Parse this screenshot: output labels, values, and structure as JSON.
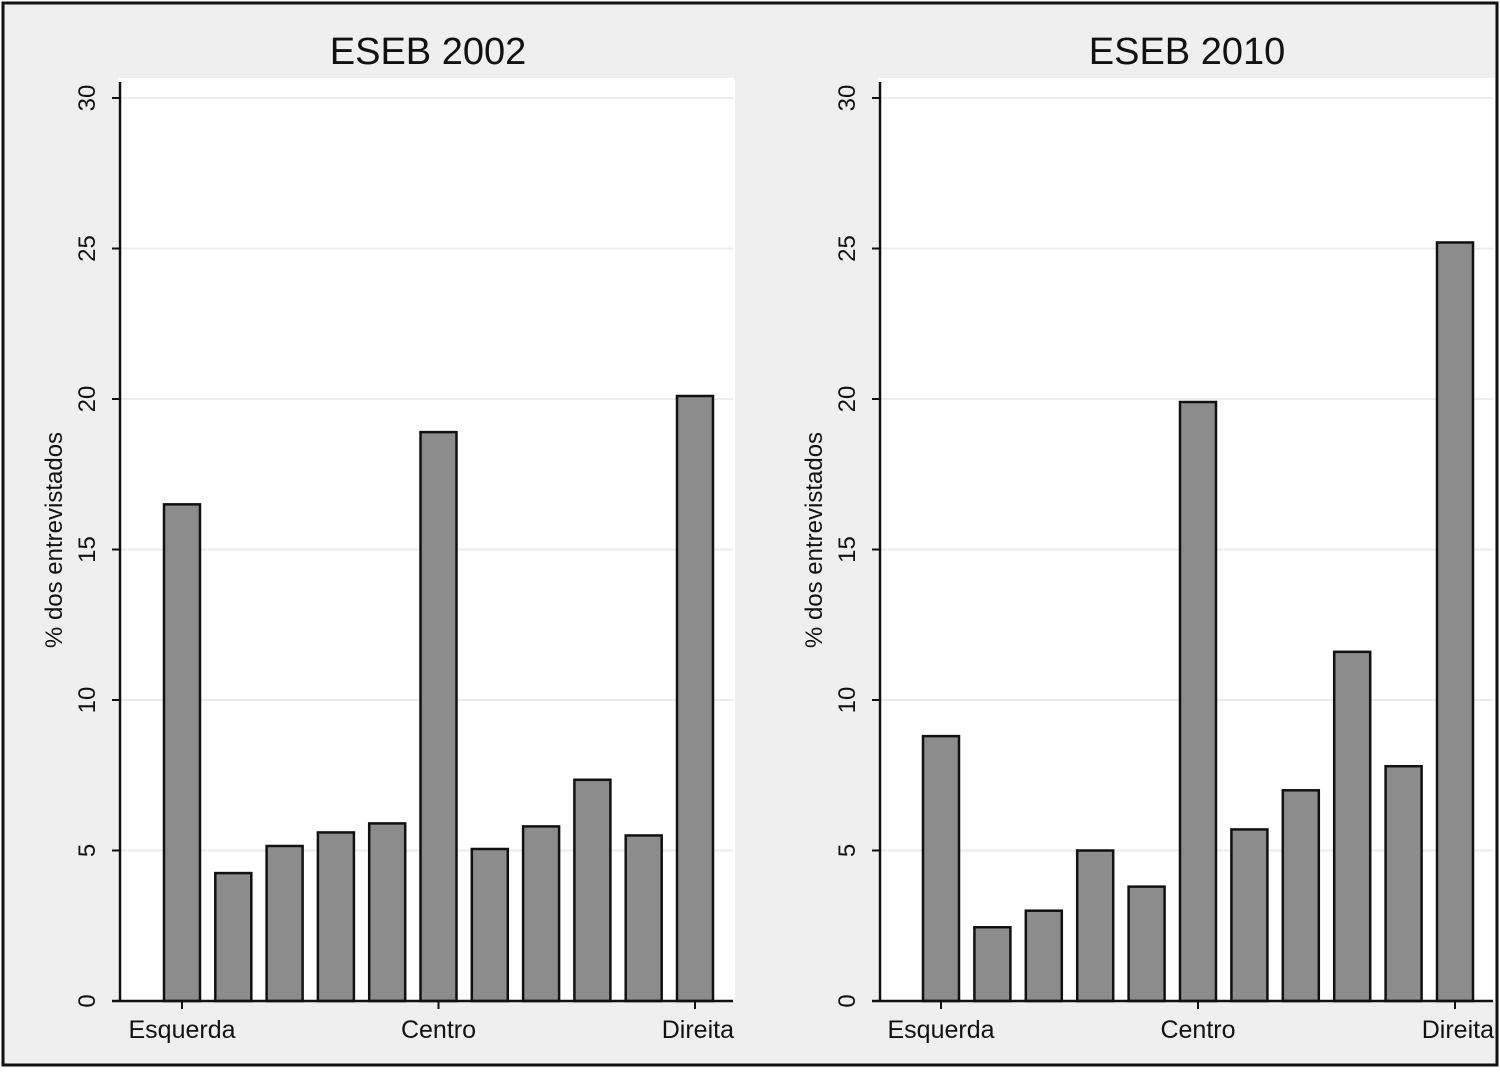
{
  "chart_data": [
    {
      "type": "bar",
      "title": "ESEB 2002",
      "ylabel": "% dos entrevistados",
      "xlabel": "",
      "ylim": [
        0,
        30
      ],
      "yticks": [
        "0",
        "5",
        "10",
        "15",
        "20",
        "25",
        "30"
      ],
      "xtick_labels": [
        {
          "position": 1,
          "label": "Esquerda"
        },
        {
          "position": 6,
          "label": "Centro"
        },
        {
          "position": 11,
          "label": "Direita"
        }
      ],
      "categories": [
        1,
        2,
        3,
        4,
        5,
        6,
        7,
        8,
        9,
        10,
        11
      ],
      "values": [
        16.5,
        4.25,
        5.15,
        5.6,
        5.9,
        18.9,
        5.05,
        5.8,
        7.35,
        5.5,
        20.1
      ],
      "grid": true,
      "bar_color": "#8c8c8c"
    },
    {
      "type": "bar",
      "title": "ESEB 2010",
      "ylabel": "% dos entrevistados",
      "xlabel": "",
      "ylim": [
        0,
        30
      ],
      "yticks": [
        "0",
        "5",
        "10",
        "15",
        "20",
        "25",
        "30"
      ],
      "xtick_labels": [
        {
          "position": 1,
          "label": "Esquerda"
        },
        {
          "position": 6,
          "label": "Centro"
        },
        {
          "position": 11,
          "label": "Direita"
        }
      ],
      "categories": [
        1,
        2,
        3,
        4,
        5,
        6,
        7,
        8,
        9,
        10,
        11
      ],
      "values": [
        8.8,
        2.45,
        3.0,
        5.0,
        3.8,
        19.9,
        5.7,
        7.0,
        11.6,
        7.8,
        25.2
      ],
      "grid": true,
      "bar_color": "#8c8c8c"
    }
  ]
}
